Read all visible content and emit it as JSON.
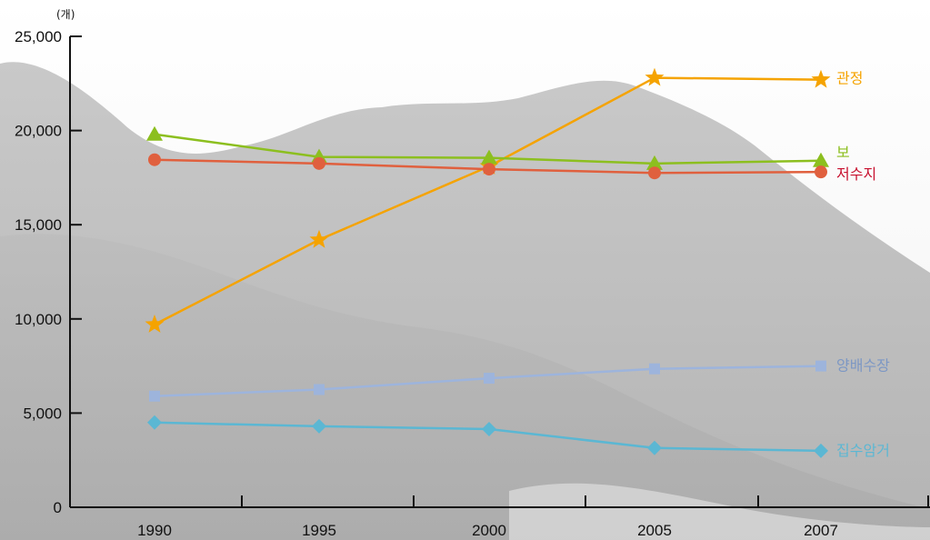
{
  "chart_data": {
    "type": "line",
    "unit": "(개)",
    "title": "",
    "xlabel": "",
    "ylabel": "",
    "categories": [
      "1990",
      "1995",
      "2000",
      "2005",
      "2007"
    ],
    "ylim": [
      0,
      25000
    ],
    "yticks": [
      "0",
      "5,000",
      "10,000",
      "15,000",
      "20,000",
      "25,000"
    ],
    "ytick_values": [
      0,
      5000,
      10000,
      15000,
      20000,
      25000
    ],
    "grid": false,
    "legend": "inline labels at right end of each line",
    "series": [
      {
        "name": "관정",
        "color": "#f5a300",
        "marker": "star",
        "values": [
          9700,
          14200,
          18100,
          22800,
          22700
        ]
      },
      {
        "name": "보",
        "color": "#8cbf1f",
        "marker": "triangle",
        "values": [
          19800,
          18600,
          18550,
          18250,
          18400
        ]
      },
      {
        "name": "저수지",
        "color": "#e0603e",
        "label_color": "#c8102e",
        "marker": "circle",
        "values": [
          18450,
          18250,
          17950,
          17750,
          17800
        ]
      },
      {
        "name": "양배수장",
        "color": "#9db4dc",
        "label_color": "#7c97c4",
        "marker": "square",
        "values": [
          5900,
          6250,
          6850,
          7350,
          7500
        ]
      },
      {
        "name": "집수암거",
        "color": "#5bb7d3",
        "marker": "diamond",
        "values": [
          4500,
          4300,
          4150,
          3150,
          3000
        ]
      }
    ]
  }
}
